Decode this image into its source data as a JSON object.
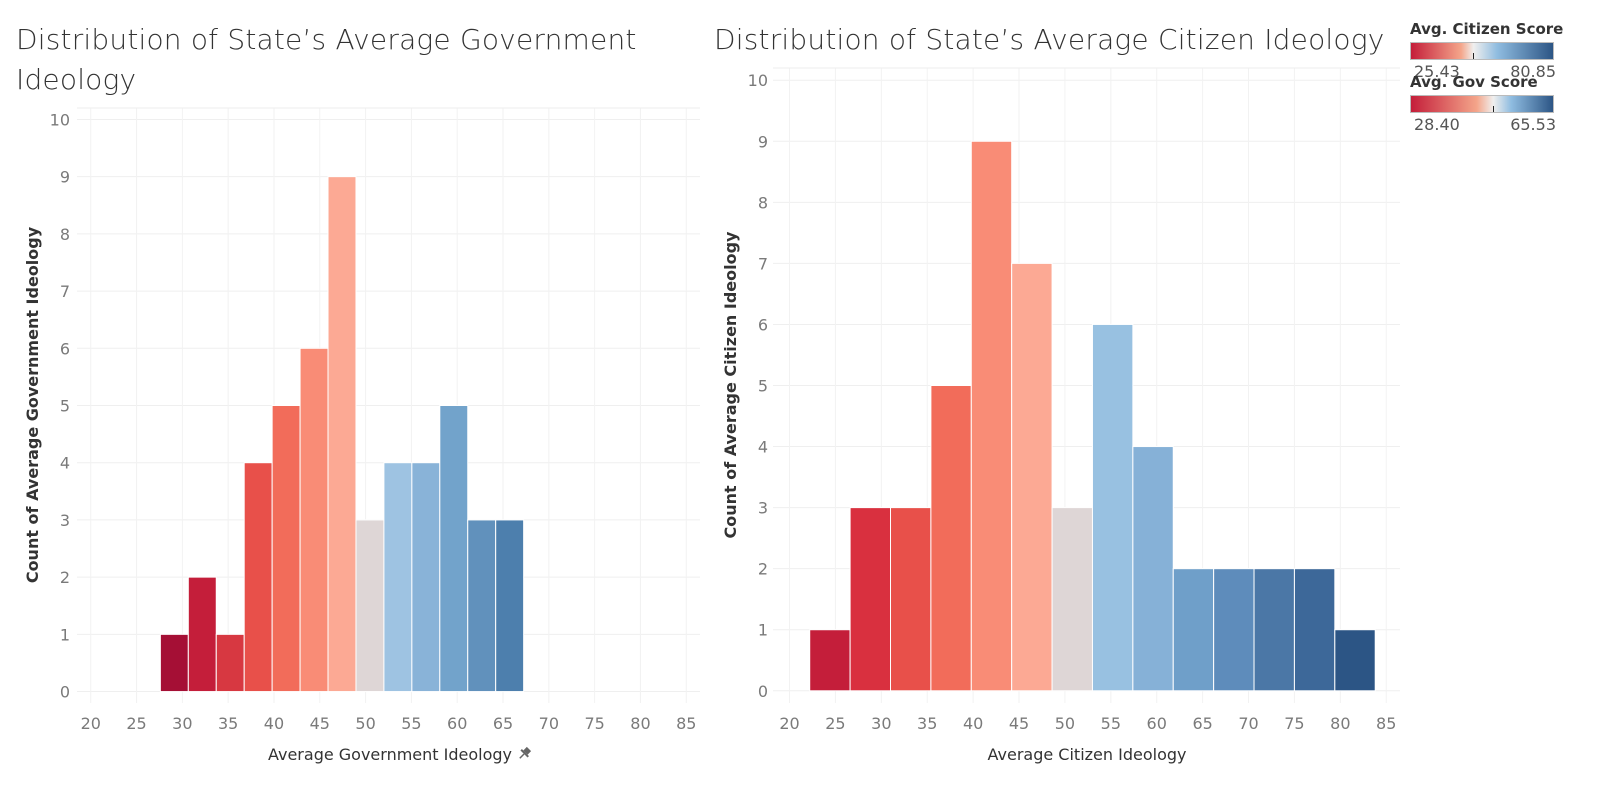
{
  "chart_data": [
    {
      "type": "bar",
      "title": "Distribution of State’s Average Government Ideology",
      "xlabel": "Average Government Ideology",
      "ylabel": "Count of Average Government Ideology",
      "x_ticks": [
        20,
        25,
        30,
        35,
        40,
        45,
        50,
        55,
        60,
        65,
        70,
        75,
        80,
        85
      ],
      "y_ticks": [
        0,
        1,
        2,
        3,
        4,
        5,
        6,
        7,
        8,
        9,
        10
      ],
      "xlim": [
        18.5,
        86.5
      ],
      "ylim": [
        -0.2,
        10.2
      ],
      "bin_width": 3.05,
      "bins": [
        {
          "start": 27.6,
          "count": 1,
          "color": "#a50f35"
        },
        {
          "start": 30.65,
          "count": 2,
          "color": "#c41e3a"
        },
        {
          "start": 33.7,
          "count": 1,
          "color": "#d73841"
        },
        {
          "start": 36.75,
          "count": 4,
          "color": "#e8504a"
        },
        {
          "start": 39.8,
          "count": 5,
          "color": "#f26c5a"
        },
        {
          "start": 42.85,
          "count": 6,
          "color": "#f98c76"
        },
        {
          "start": 45.9,
          "count": 9,
          "color": "#fca994"
        },
        {
          "start": 48.95,
          "count": 3,
          "color": "#ded6d6"
        },
        {
          "start": 52.0,
          "count": 4,
          "color": "#9ec3e2"
        },
        {
          "start": 55.05,
          "count": 4,
          "color": "#89b3d8"
        },
        {
          "start": 58.1,
          "count": 5,
          "color": "#72a3cb"
        },
        {
          "start": 61.15,
          "count": 3,
          "color": "#6191bc"
        },
        {
          "start": 64.2,
          "count": 3,
          "color": "#4d7fad"
        }
      ],
      "grid": true,
      "legend": "top-right"
    },
    {
      "type": "bar",
      "title": "Distribution of State’s Average Citizen Ideology",
      "xlabel": "Average Citizen Ideology",
      "ylabel": "Count of Average Citizen Ideology",
      "x_ticks": [
        20,
        25,
        30,
        35,
        40,
        45,
        50,
        55,
        60,
        65,
        70,
        75,
        80,
        85
      ],
      "y_ticks": [
        0,
        1,
        2,
        3,
        4,
        5,
        6,
        7,
        8,
        9,
        10
      ],
      "xlim": [
        18.2,
        86.5
      ],
      "ylim": [
        -0.2,
        10.2
      ],
      "bin_width": 4.4,
      "bins": [
        {
          "start": 22.2,
          "count": 1,
          "color": "#c41e3a"
        },
        {
          "start": 26.6,
          "count": 3,
          "color": "#d9303f"
        },
        {
          "start": 31.0,
          "count": 3,
          "color": "#e8504a"
        },
        {
          "start": 35.4,
          "count": 5,
          "color": "#f26c5a"
        },
        {
          "start": 39.8,
          "count": 9,
          "color": "#f98c76"
        },
        {
          "start": 44.2,
          "count": 7,
          "color": "#fca994"
        },
        {
          "start": 48.6,
          "count": 3,
          "color": "#ded6d6"
        },
        {
          "start": 53.0,
          "count": 6,
          "color": "#98c1e1"
        },
        {
          "start": 57.4,
          "count": 4,
          "color": "#86b1d7"
        },
        {
          "start": 61.8,
          "count": 2,
          "color": "#6f9fc9"
        },
        {
          "start": 66.2,
          "count": 2,
          "color": "#5e8cbb"
        },
        {
          "start": 70.6,
          "count": 2,
          "color": "#4b77a6"
        },
        {
          "start": 75.0,
          "count": 2,
          "color": "#3d6899"
        },
        {
          "start": 79.4,
          "count": 1,
          "color": "#2c5585"
        }
      ],
      "grid": true,
      "legend": "top-right"
    }
  ],
  "legends": [
    {
      "title": "Avg. Citizen Score",
      "min_label": "25.43",
      "max_label": "80.85",
      "color_low": "#c41e3a",
      "color_mid": "#f0efee",
      "color_high": "#2c5585",
      "mid_fraction": 0.44
    },
    {
      "title": "Avg. Gov Score",
      "min_label": "28.40",
      "max_label": "65.53",
      "color_low": "#c41e3a",
      "color_mid": "#f0efee",
      "color_high": "#2c5585",
      "mid_fraction": 0.58
    }
  ]
}
